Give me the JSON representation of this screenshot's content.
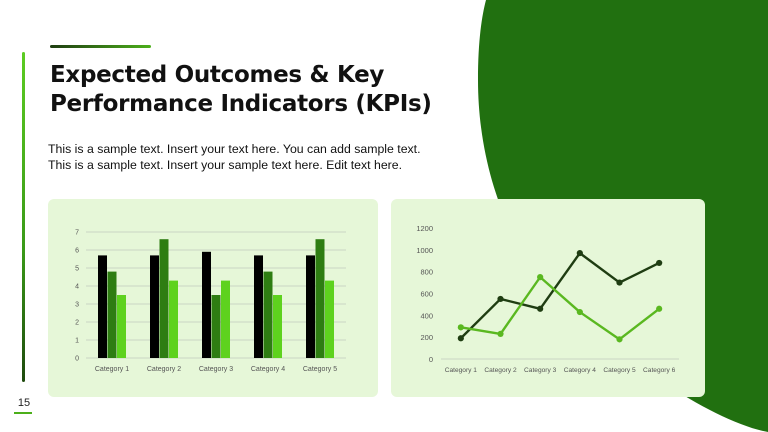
{
  "slide": {
    "title": "Expected Outcomes & Key Performance Indicators (KPIs)",
    "description_line1": "This is a sample text. Insert your text here. You can add sample text.",
    "description_line2": "This is a sample text. Insert your sample text here. Edit text here.",
    "page_number": "15"
  },
  "colors": {
    "dark_green": "#217010",
    "panel_bg": "#e6f7d8",
    "accent_green": "#4caf1a"
  },
  "chart_data": [
    {
      "type": "bar",
      "categories": [
        "Category 1",
        "Category 2",
        "Category 3",
        "Category 4",
        "Category 5"
      ],
      "series": [
        {
          "values": [
            5.7,
            5.7,
            5.9,
            5.7,
            5.7
          ],
          "color": "#000000"
        },
        {
          "values": [
            4.8,
            6.6,
            3.5,
            4.8,
            6.6
          ],
          "color": "#2e7d12"
        },
        {
          "values": [
            3.5,
            4.3,
            4.3,
            3.5,
            4.3
          ],
          "color": "#5ed21e"
        }
      ],
      "ylim": [
        0,
        7
      ],
      "yticks": [
        "0",
        "1",
        "2",
        "3",
        "4",
        "5",
        "6",
        "7"
      ],
      "grid": true
    },
    {
      "type": "line",
      "categories": [
        "Category 1",
        "Category 2",
        "Category 3",
        "Category 4",
        "Category 5",
        "Category 6"
      ],
      "series": [
        {
          "values": [
            190,
            550,
            460,
            970,
            700,
            880
          ],
          "color": "#1f3d12"
        },
        {
          "values": [
            290,
            230,
            750,
            430,
            180,
            460
          ],
          "color": "#5ab820"
        }
      ],
      "ylim": [
        0,
        1200
      ],
      "yticks": [
        "0",
        "200",
        "400",
        "600",
        "800",
        "1000",
        "1200"
      ],
      "grid": false
    }
  ]
}
